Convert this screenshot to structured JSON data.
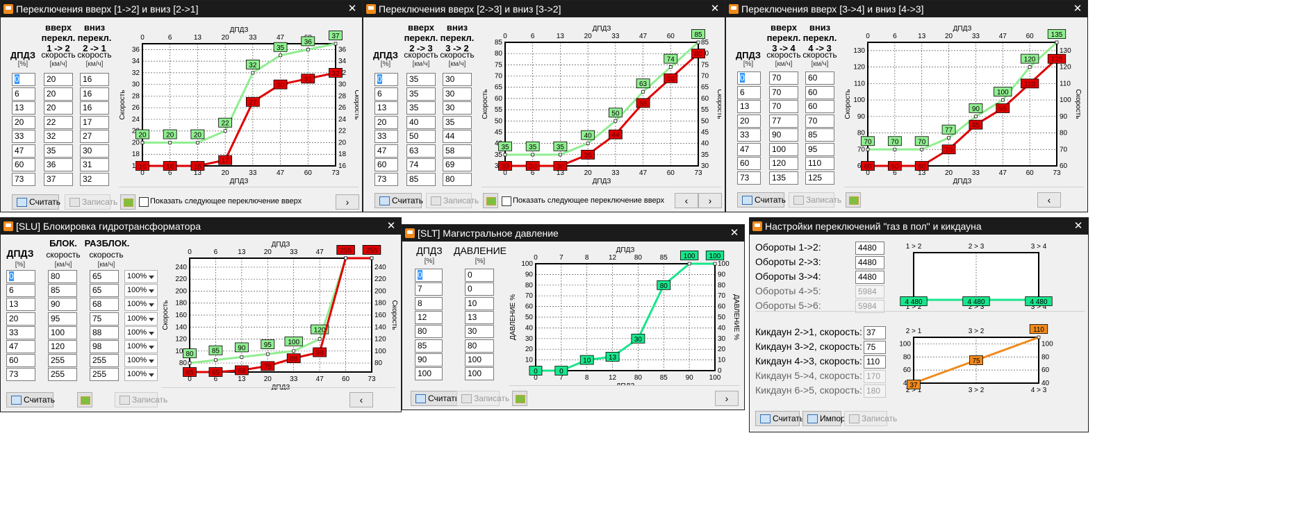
{
  "w1": {
    "title": "Переключения вверх [1->2] и вниз [2->1]",
    "col_dpdz": "ДПДЗ",
    "unit_pct": "[%]",
    "col_up": [
      "вверх",
      "перекл.",
      "1 -> 2"
    ],
    "col_down": [
      "вниз",
      "перекл.",
      "2 -> 1"
    ],
    "speed": "скорость",
    "unit_kmh": "[км/ч]",
    "rows": [
      [
        "0",
        "20",
        "16"
      ],
      [
        "6",
        "20",
        "16"
      ],
      [
        "13",
        "20",
        "16"
      ],
      [
        "20",
        "22",
        "17"
      ],
      [
        "33",
        "32",
        "27"
      ],
      [
        "47",
        "35",
        "30"
      ],
      [
        "60",
        "36",
        "31"
      ],
      [
        "73",
        "37",
        "32"
      ]
    ],
    "btn_calc": "Считать",
    "btn_write": "Записать",
    "show_next": "Показать следующее переключение вверх",
    "nav_next": "›",
    "close": "✕"
  },
  "w2": {
    "title": "Переключения вверх [2->3] и вниз [3->2]",
    "col_up": [
      "вверх",
      "перекл.",
      "2 -> 3"
    ],
    "col_down": [
      "вниз",
      "перекл.",
      "3 -> 2"
    ],
    "rows": [
      [
        "0",
        "35",
        "30"
      ],
      [
        "6",
        "35",
        "30"
      ],
      [
        "13",
        "35",
        "30"
      ],
      [
        "20",
        "40",
        "35"
      ],
      [
        "33",
        "50",
        "44"
      ],
      [
        "47",
        "63",
        "58"
      ],
      [
        "60",
        "74",
        "69"
      ],
      [
        "73",
        "85",
        "80"
      ]
    ],
    "show_next": "Показать следующее переключение вверх",
    "nav_prev": "‹",
    "nav_next": "›"
  },
  "w3": {
    "title": "Переключения вверх [3->4] и вниз [4->3]",
    "col_up": [
      "вверх",
      "перекл.",
      "3 -> 4"
    ],
    "col_down": [
      "вниз",
      "перекл.",
      "4 -> 3"
    ],
    "rows": [
      [
        "0",
        "70",
        "60"
      ],
      [
        "6",
        "70",
        "60"
      ],
      [
        "13",
        "70",
        "60"
      ],
      [
        "20",
        "77",
        "70"
      ],
      [
        "33",
        "90",
        "85"
      ],
      [
        "47",
        "100",
        "95"
      ],
      [
        "60",
        "120",
        "110"
      ],
      [
        "73",
        "135",
        "125"
      ]
    ],
    "nav_prev": "‹"
  },
  "w4": {
    "title": "[SLU] Блокировка гидротрансформатора",
    "col_lock": "БЛОК.",
    "col_unlock": "РАЗБЛОК.",
    "rows": [
      [
        "0",
        "80",
        "65",
        "100%"
      ],
      [
        "6",
        "85",
        "65",
        "100%"
      ],
      [
        "13",
        "90",
        "68",
        "100%"
      ],
      [
        "20",
        "95",
        "75",
        "100%"
      ],
      [
        "33",
        "100",
        "88",
        "100%"
      ],
      [
        "47",
        "120",
        "98",
        "100%"
      ],
      [
        "60",
        "255",
        "255",
        "100%"
      ],
      [
        "73",
        "255",
        "255",
        "100%"
      ]
    ],
    "nav_prev": "‹"
  },
  "w5": {
    "title": "[SLT] Магистральное давление",
    "col_press": "ДАВЛЕНИЕ",
    "rows": [
      [
        "0",
        "0"
      ],
      [
        "7",
        "0"
      ],
      [
        "8",
        "10"
      ],
      [
        "12",
        "13"
      ],
      [
        "80",
        "30"
      ],
      [
        "85",
        "80"
      ],
      [
        "90",
        "100"
      ],
      [
        "100",
        "100"
      ]
    ],
    "nav_next": "›"
  },
  "w6": {
    "title": "Настройки переключений \"газ в пол\" и кикдауна",
    "rpm": [
      {
        "label": "Обороты 1->2:",
        "value": "4480",
        "enabled": true
      },
      {
        "label": "Обороты 2->3:",
        "value": "4480",
        "enabled": true
      },
      {
        "label": "Обороты 3->4:",
        "value": "4480",
        "enabled": true
      },
      {
        "label": "Обороты 4->5:",
        "value": "5984",
        "enabled": false
      },
      {
        "label": "Обороты 5->6:",
        "value": "5984",
        "enabled": false
      }
    ],
    "kick": [
      {
        "label": "Кикдаун 2->1, скорость:",
        "value": "37",
        "enabled": true
      },
      {
        "label": "Кикдаун 3->2, скорость:",
        "value": "75",
        "enabled": true
      },
      {
        "label": "Кикдаун 4->3, скорость:",
        "value": "110",
        "enabled": true
      },
      {
        "label": "Кикдаун 5->4, скорость:",
        "value": "170",
        "enabled": false
      },
      {
        "label": "Кикдаун 6->5, скорость:",
        "value": "180",
        "enabled": false
      }
    ],
    "btn_import": "Импорт"
  },
  "colors": {
    "up": "#90ee90",
    "down": "#e00000",
    "press": "#19e68c",
    "kick": "#f08a1c"
  },
  "chart_data": [
    {
      "type": "line",
      "title": "",
      "xlabel": "ДПДЗ",
      "ylabel": "Скорость",
      "y2label": "Скорость",
      "x": [
        0,
        6,
        13,
        20,
        33,
        47,
        60,
        73
      ],
      "ylim": [
        16,
        37
      ],
      "yticks": [
        16,
        18,
        20,
        22,
        24,
        26,
        28,
        30,
        32,
        34,
        36
      ],
      "series": [
        {
          "values": [
            20,
            20,
            20,
            22,
            32,
            35,
            36,
            37
          ]
        },
        {
          "values": [
            16,
            16,
            16,
            17,
            27,
            30,
            31,
            32
          ]
        }
      ]
    },
    {
      "type": "line",
      "title": "",
      "xlabel": "ДПДЗ",
      "ylabel": "Скорость",
      "y2label": "Скорость",
      "x": [
        0,
        6,
        13,
        20,
        33,
        47,
        60,
        73
      ],
      "ylim": [
        30,
        85
      ],
      "yticks": [
        30,
        35,
        40,
        45,
        50,
        55,
        60,
        65,
        70,
        75,
        80,
        85
      ],
      "series": [
        {
          "values": [
            35,
            35,
            35,
            40,
            50,
            63,
            74,
            85
          ]
        },
        {
          "values": [
            30,
            30,
            30,
            35,
            44,
            58,
            69,
            80
          ]
        }
      ]
    },
    {
      "type": "line",
      "title": "",
      "xlabel": "ДПДЗ",
      "ylabel": "Скорость",
      "y2label": "Скорость",
      "x": [
        0,
        6,
        13,
        20,
        33,
        47,
        60,
        73
      ],
      "ylim": [
        60,
        135
      ],
      "yticks": [
        60,
        70,
        80,
        90,
        100,
        110,
        120,
        130
      ],
      "series": [
        {
          "values": [
            70,
            70,
            70,
            77,
            90,
            100,
            120,
            135
          ]
        },
        {
          "values": [
            60,
            60,
            60,
            70,
            85,
            95,
            110,
            125
          ]
        }
      ]
    },
    {
      "type": "line",
      "title": "",
      "xlabel": "ДПДЗ",
      "ylabel": "Скорость",
      "y2label": "Скорость",
      "x": [
        0,
        6,
        13,
        20,
        33,
        47,
        60,
        73
      ],
      "ylim": [
        65,
        255
      ],
      "yticks": [
        80,
        100,
        120,
        140,
        160,
        180,
        200,
        220,
        240
      ],
      "series": [
        {
          "values": [
            80,
            85,
            90,
            95,
            100,
            120,
            255,
            255
          ]
        },
        {
          "values": [
            65,
            65,
            68,
            75,
            88,
            98,
            255,
            255
          ]
        }
      ]
    },
    {
      "type": "line",
      "title": "",
      "xlabel": "ДПДЗ",
      "ylabel": "ДАВЛЕНИЕ %",
      "y2label": "ДАВЛЕНИЕ %",
      "x": [
        0,
        7,
        8,
        12,
        80,
        85,
        90,
        100
      ],
      "ylim": [
        0,
        100
      ],
      "yticks": [
        0,
        10,
        20,
        30,
        40,
        50,
        60,
        70,
        80,
        90,
        100
      ],
      "series": [
        {
          "values": [
            0,
            0,
            10,
            13,
            30,
            80,
            100,
            100
          ]
        }
      ]
    },
    {
      "type": "line",
      "title": "",
      "x": [
        "1 > 2",
        "2 > 3",
        "3 > 4"
      ],
      "ylim": [
        5000,
        9000
      ],
      "yticks": [
        "5 000",
        "6 000",
        "7 000",
        "8 000",
        "9 000"
      ],
      "series": [
        {
          "values": [
            4480,
            4480,
            4480
          ],
          "labels": [
            "4 480",
            "4 480",
            "4 480"
          ]
        }
      ]
    },
    {
      "type": "line",
      "title": "",
      "x": [
        "2 > 1",
        "3 > 2",
        "4 > 3"
      ],
      "ylim": [
        40,
        110
      ],
      "yticks": [
        40,
        60,
        80,
        100
      ],
      "series": [
        {
          "values": [
            37,
            75,
            110
          ]
        }
      ]
    }
  ]
}
